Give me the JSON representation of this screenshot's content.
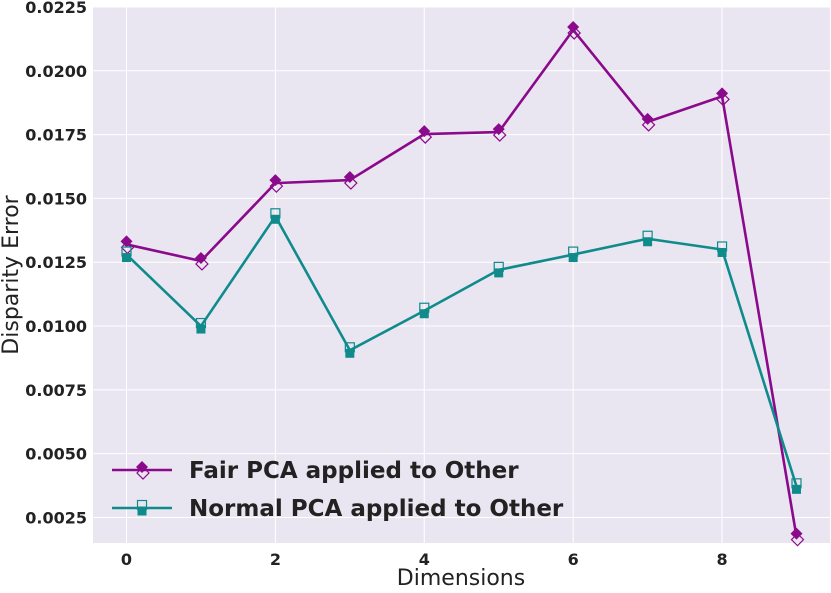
{
  "chart_data": {
    "type": "line",
    "title": "",
    "xlabel": "Dimensions",
    "ylabel": "Disparity Error",
    "xlim": [
      -0.45,
      9.45
    ],
    "ylim": [
      0.0015,
      0.0225
    ],
    "xticks": [
      0,
      2,
      4,
      6,
      8
    ],
    "xtick_labels": [
      "0",
      "2",
      "4",
      "6",
      "8"
    ],
    "yticks": [
      0.0025,
      0.005,
      0.0075,
      0.01,
      0.0125,
      0.015,
      0.0175,
      0.02,
      0.0225
    ],
    "ytick_labels": [
      "0.0025",
      "0.0050",
      "0.0075",
      "0.0100",
      "0.0125",
      "0.0150",
      "0.0175",
      "0.0200",
      "0.0225"
    ],
    "grid": true,
    "legend_position": "lower-left",
    "x": [
      0,
      1,
      2,
      3,
      4,
      5,
      6,
      7,
      8,
      9
    ],
    "series": [
      {
        "name": "Fair PCA applied to Other",
        "color": "#8b0a8b",
        "marker": "diamond",
        "values": [
          0.0132,
          0.01255,
          0.0156,
          0.01572,
          0.01752,
          0.0176,
          0.0216,
          0.018,
          0.019,
          0.00175
        ]
      },
      {
        "name": "Normal PCA applied to Other",
        "color": "#0f8b8b",
        "marker": "square",
        "values": [
          0.0128,
          0.01,
          0.0143,
          0.00905,
          0.0106,
          0.0122,
          0.0128,
          0.01342,
          0.013,
          0.00372
        ]
      }
    ]
  },
  "colors": {
    "plot_background": "#eae6f1",
    "grid": "#ffffff",
    "text": "#222222"
  }
}
